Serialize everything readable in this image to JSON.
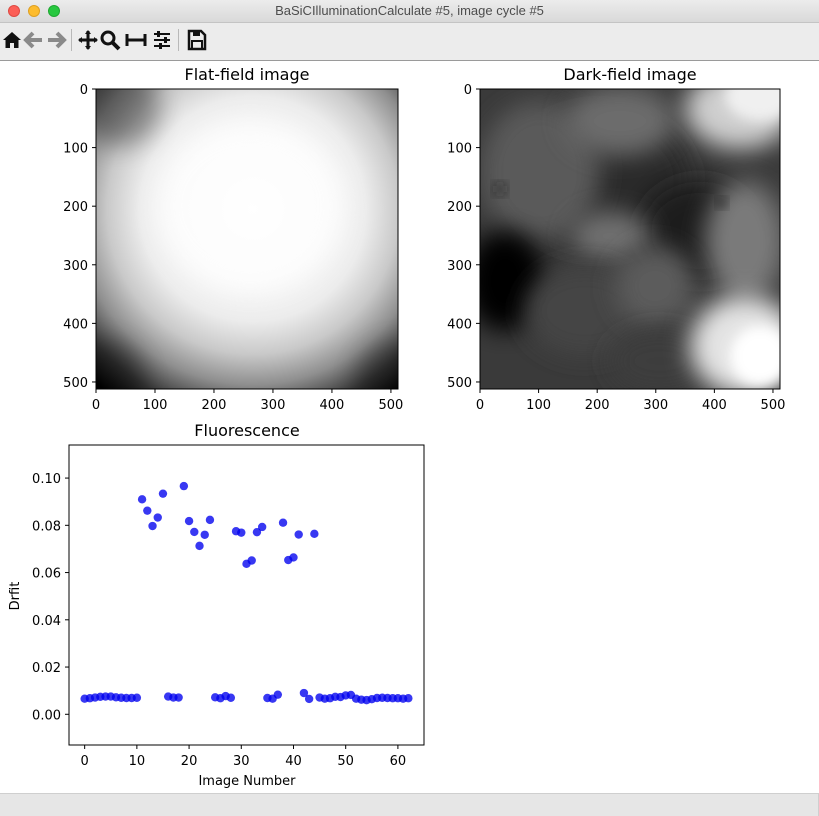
{
  "window": {
    "title": "BaSiCIlluminationCalculate #5, image cycle #5"
  },
  "toolbar": {
    "buttons": [
      {
        "name": "home-icon",
        "tooltip": "Home"
      },
      {
        "name": "back-arrow-icon",
        "tooltip": "Back"
      },
      {
        "name": "forward-arrow-icon",
        "tooltip": "Forward"
      },
      {
        "name": "pan-icon",
        "tooltip": "Pan"
      },
      {
        "name": "zoom-icon",
        "tooltip": "Zoom"
      },
      {
        "name": "subplots-icon",
        "tooltip": "Subplots"
      },
      {
        "name": "customize-icon",
        "tooltip": "Customize"
      },
      {
        "name": "save-icon",
        "tooltip": "Save"
      }
    ]
  },
  "chart_data": [
    {
      "type": "heatmap",
      "title": "Flat-field image",
      "colormap": "gray",
      "xlim": [
        0,
        512
      ],
      "ylim": [
        512,
        0
      ],
      "xticks": [
        0,
        100,
        200,
        300,
        400,
        500
      ],
      "yticks": [
        0,
        100,
        200,
        300,
        400,
        500
      ],
      "description_of_values": "bright center, darker corners (vignetting)"
    },
    {
      "type": "heatmap",
      "title": "Dark-field image",
      "colormap": "gray",
      "xlim": [
        0,
        512
      ],
      "ylim": [
        512,
        0
      ],
      "xticks": [
        0,
        100,
        200,
        300,
        400,
        500
      ],
      "yticks": [
        0,
        100,
        200,
        300,
        400,
        500
      ],
      "description_of_values": "mostly dark, bright patches at top-right and bottom-right, mid-gray blobs"
    },
    {
      "type": "scatter",
      "title": "Fluorescence",
      "xlabel": "Image Number",
      "ylabel": "Drfit",
      "xlim": [
        -3,
        65
      ],
      "ylim": [
        -0.013,
        0.114
      ],
      "xticks": [
        0,
        10,
        20,
        30,
        40,
        50,
        60
      ],
      "yticks": [
        0.0,
        0.02,
        0.04,
        0.06,
        0.08,
        0.1
      ],
      "ytick_labels": [
        "0.00",
        "0.02",
        "0.04",
        "0.06",
        "0.08",
        "0.10"
      ],
      "color": "#0000ee",
      "series": [
        {
          "points": [
            [
              0,
              0.0066
            ],
            [
              1,
              0.0068
            ],
            [
              2,
              0.0071
            ],
            [
              3,
              0.0074
            ],
            [
              4,
              0.0075
            ],
            [
              5,
              0.0075
            ],
            [
              6,
              0.0072
            ],
            [
              7,
              0.007
            ],
            [
              8,
              0.0069
            ],
            [
              9,
              0.0069
            ],
            [
              10,
              0.007
            ],
            [
              11,
              0.091
            ],
            [
              12,
              0.0862
            ],
            [
              13,
              0.0797
            ],
            [
              14,
              0.0833
            ],
            [
              15,
              0.0934
            ],
            [
              16,
              0.0075
            ],
            [
              17,
              0.0071
            ],
            [
              18,
              0.0071
            ],
            [
              19,
              0.0966
            ],
            [
              20,
              0.0818
            ],
            [
              21,
              0.0772
            ],
            [
              22,
              0.0713
            ],
            [
              23,
              0.076
            ],
            [
              24,
              0.0823
            ],
            [
              25,
              0.0072
            ],
            [
              26,
              0.0068
            ],
            [
              27,
              0.0077
            ],
            [
              28,
              0.007
            ],
            [
              29,
              0.0775
            ],
            [
              30,
              0.0769
            ],
            [
              31,
              0.0637
            ],
            [
              32,
              0.0651
            ],
            [
              33,
              0.0771
            ],
            [
              34,
              0.0793
            ],
            [
              35,
              0.0069
            ],
            [
              36,
              0.0066
            ],
            [
              37,
              0.0083
            ],
            [
              38,
              0.0811
            ],
            [
              39,
              0.0653
            ],
            [
              40,
              0.0664
            ],
            [
              41,
              0.0761
            ],
            [
              42,
              0.009
            ],
            [
              43,
              0.0065
            ],
            [
              44,
              0.0764
            ],
            [
              45,
              0.0071
            ],
            [
              46,
              0.0066
            ],
            [
              47,
              0.0068
            ],
            [
              48,
              0.0074
            ],
            [
              49,
              0.0073
            ],
            [
              50,
              0.008
            ],
            [
              51,
              0.0082
            ],
            [
              52,
              0.0066
            ],
            [
              53,
              0.0062
            ],
            [
              54,
              0.006
            ],
            [
              55,
              0.0064
            ],
            [
              56,
              0.0069
            ],
            [
              57,
              0.007
            ],
            [
              58,
              0.0069
            ],
            [
              59,
              0.0068
            ],
            [
              60,
              0.0068
            ],
            [
              61,
              0.0066
            ],
            [
              62,
              0.0068
            ]
          ]
        }
      ]
    }
  ]
}
